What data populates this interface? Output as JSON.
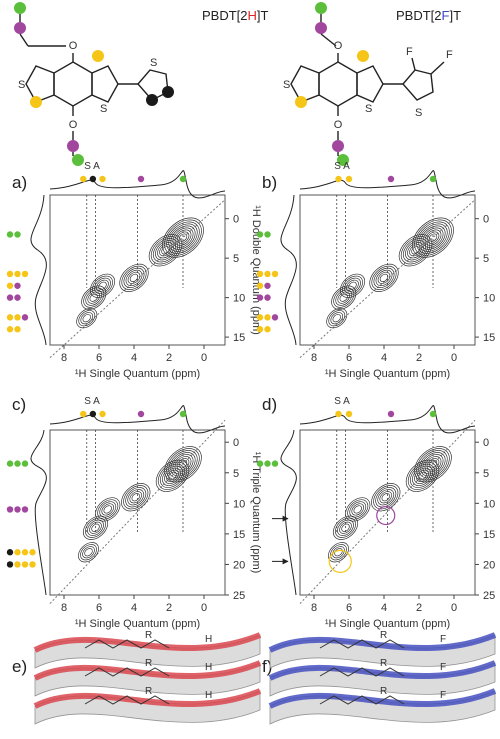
{
  "colors": {
    "green": "#5bbf3c",
    "purple": "#a1479e",
    "yellow": "#f5c518",
    "black": "#1a1a1a",
    "red": "#e02424",
    "blue": "#3b49c4",
    "ribbon_red": "#d9474f",
    "ribbon_blue": "#4550c0"
  },
  "structures": {
    "left": {
      "title_pre": "PBDT[2",
      "title_atom": "H",
      "title_post": "]T"
    },
    "right": {
      "title_pre": "PBDT[2",
      "title_atom": "F",
      "title_post": "]T"
    },
    "atom_S": "S",
    "atom_O": "O",
    "atom_F": "F"
  },
  "panels": {
    "a": {
      "label": "a)",
      "xlabel": "¹H Single Quantum (ppm)",
      "ylabel": "¹H Double Quantum (ppm)",
      "sa": "S A"
    },
    "b": {
      "label": "b)",
      "xlabel": "¹H Single Quantum (ppm)",
      "ylabel": "¹H Double Quantum (ppm)",
      "sa": "S A"
    },
    "c": {
      "label": "c)",
      "xlabel": "¹H Single Quantum (ppm)",
      "ylabel": "¹H Triple Quantum (ppm)",
      "sa": "S A"
    },
    "d": {
      "label": "d)",
      "xlabel": "¹H Single Quantum (ppm)",
      "ylabel": "¹H Triple Quantum (ppm)",
      "sa": "S A"
    },
    "e": {
      "label": "e)",
      "atom_R": "R",
      "atom_H": "H"
    },
    "f": {
      "label": "f)",
      "atom_R": "R",
      "atom_F": "F"
    }
  },
  "chart_data": [
    {
      "type": "heatmap",
      "panel": "a",
      "x_ticks": [
        "8",
        "6",
        "4",
        "2",
        "0"
      ],
      "y_ticks": [
        "0",
        "5",
        "10",
        "15"
      ],
      "xlim": [
        8.8,
        -1.2
      ],
      "ylim": [
        -3,
        16
      ]
    },
    {
      "type": "heatmap",
      "panel": "b",
      "x_ticks": [
        "8",
        "6",
        "4",
        "2",
        "0"
      ],
      "y_ticks": [
        "0",
        "5",
        "10",
        "15"
      ],
      "xlim": [
        8.8,
        -1.2
      ],
      "ylim": [
        -3,
        16
      ]
    },
    {
      "type": "heatmap",
      "panel": "c",
      "x_ticks": [
        "8",
        "6",
        "4",
        "2",
        "0"
      ],
      "y_ticks": [
        "0",
        "5",
        "10",
        "15",
        "20",
        "25"
      ],
      "xlim": [
        8.8,
        -1.2
      ],
      "ylim": [
        -2,
        25
      ]
    },
    {
      "type": "heatmap",
      "panel": "d",
      "x_ticks": [
        "8",
        "6",
        "4",
        "2",
        "0"
      ],
      "y_ticks": [
        "0",
        "5",
        "10",
        "15",
        "20",
        "25"
      ],
      "xlim": [
        8.8,
        -1.2
      ],
      "ylim": [
        -2,
        25
      ]
    }
  ]
}
